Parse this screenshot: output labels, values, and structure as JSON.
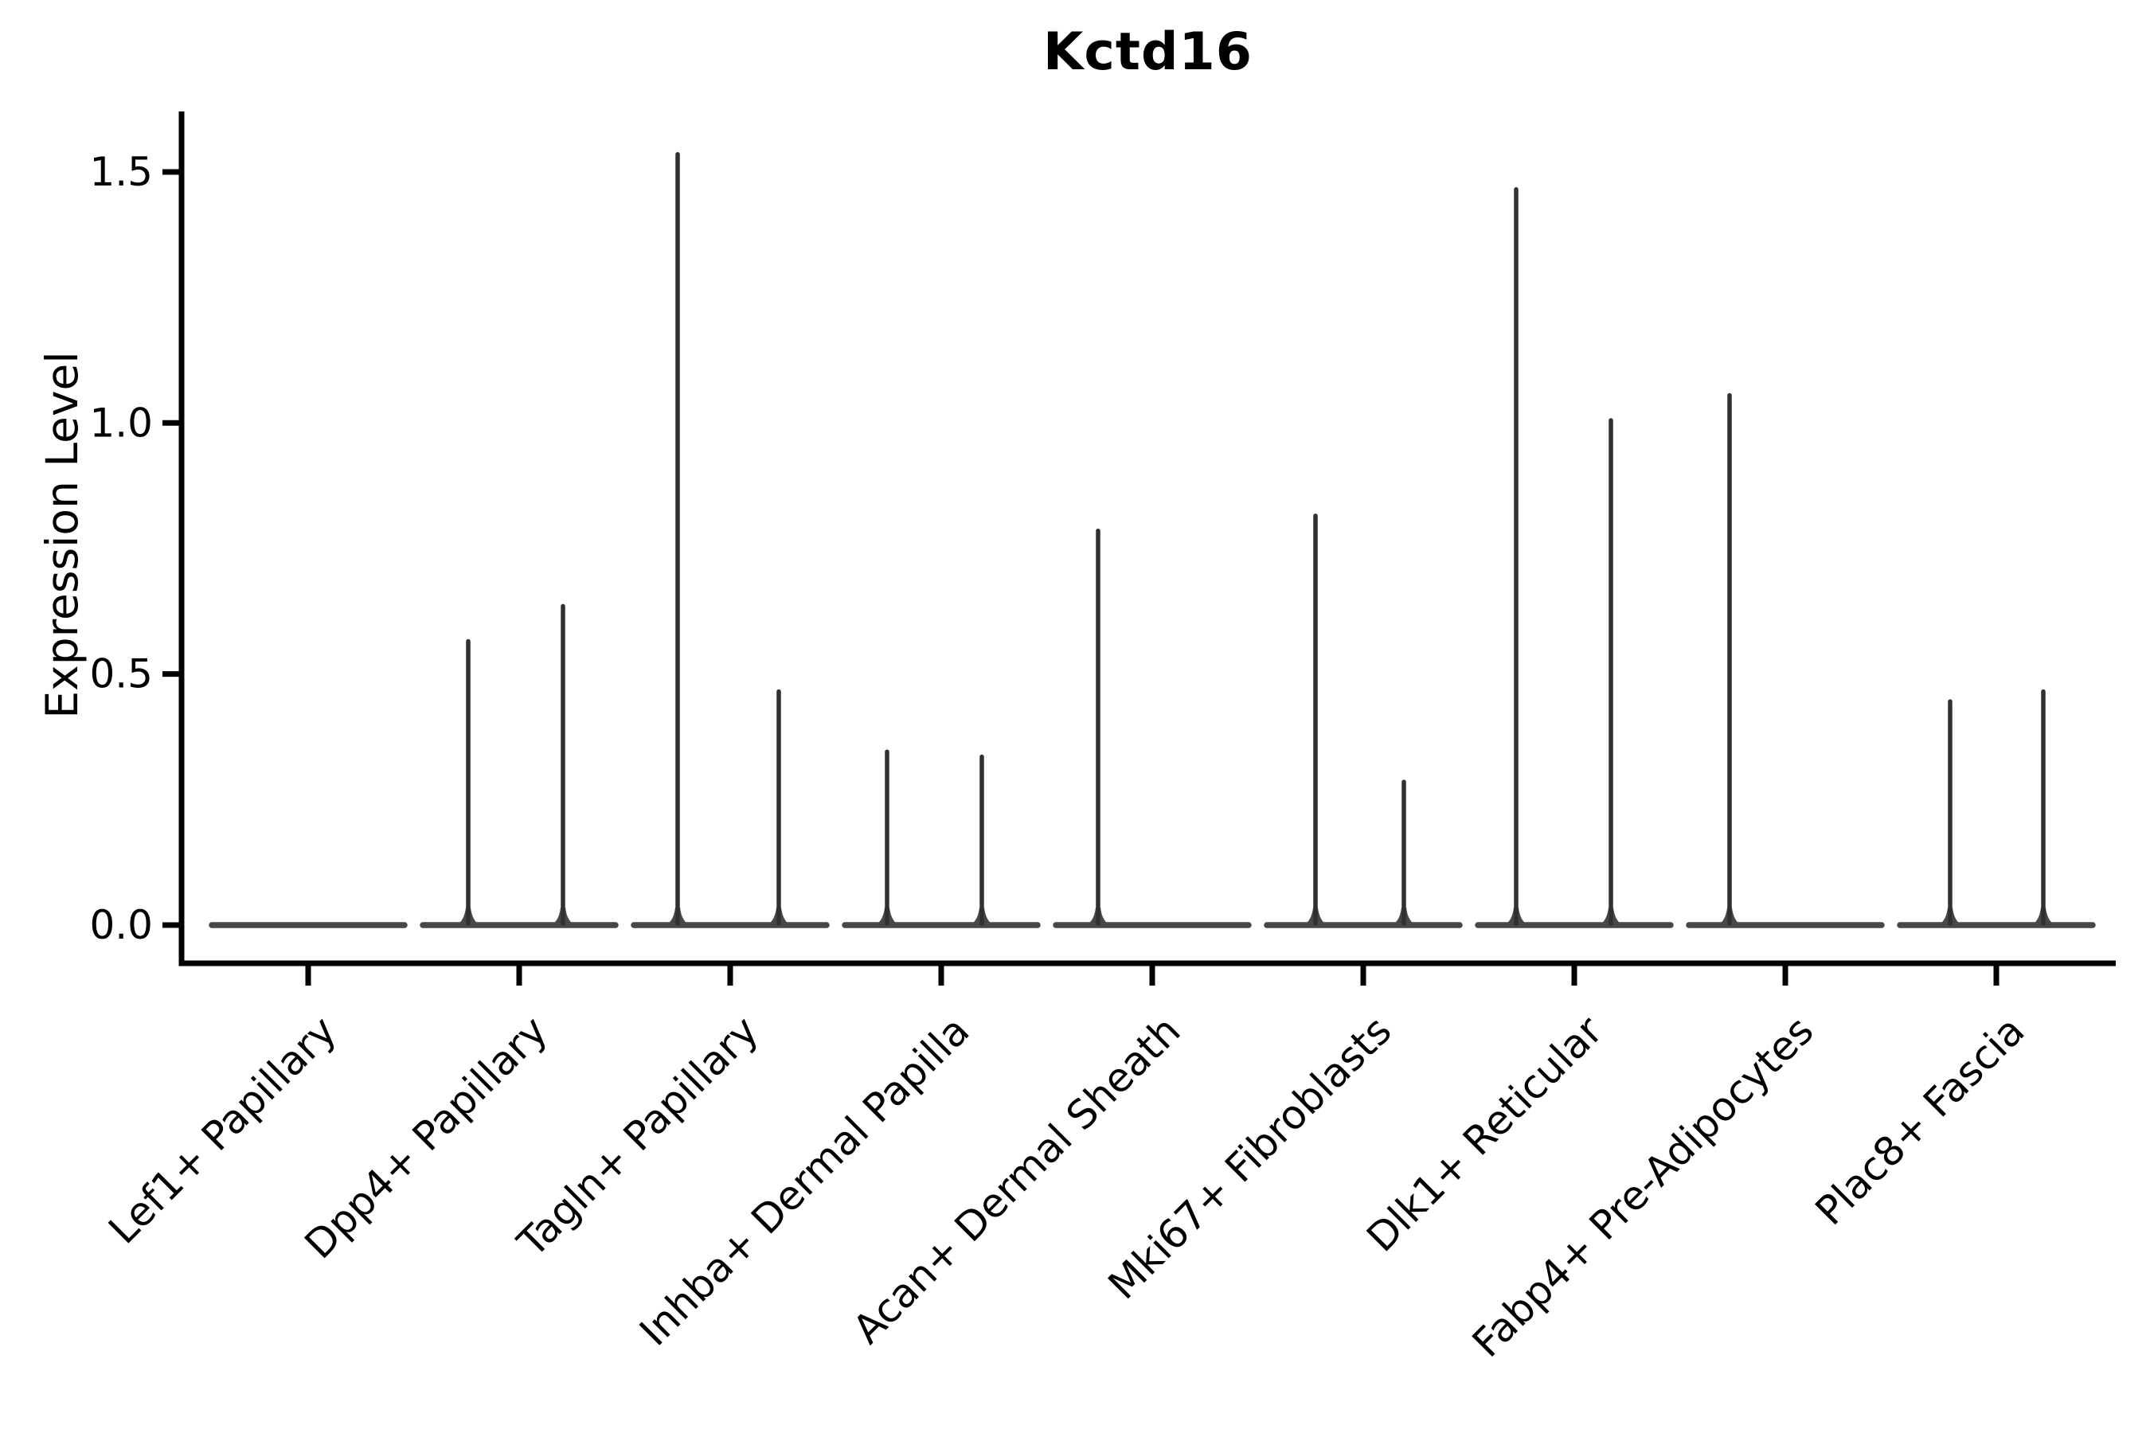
{
  "figure": {
    "background": "#ffffff"
  },
  "chart_data": {
    "type": "violin",
    "title": "Kctd16",
    "xlabel": "",
    "ylabel": "Expression Level",
    "legend": "none",
    "grid": false,
    "spines": [
      "left",
      "bottom"
    ],
    "ylim": [
      -0.08,
      1.62
    ],
    "ytick_values": [
      0.0,
      0.5,
      1.0,
      1.5
    ],
    "ytick_labels": [
      "0.0",
      "0.5",
      "1.0",
      "1.5"
    ],
    "xtick_label_rotation_deg": 45,
    "categories": [
      "Lef1+ Papillary",
      "Dpp4+ Papillary",
      "Tagln+ Papillary",
      "Inhba+ Dermal Papilla",
      "Acan+ Dermal Sheath",
      "Mki67+ Fibroblasts",
      "Dlk1+ Reticular",
      "Fabp4+ Pre-Adipocytes",
      "Plac8+ Fascia"
    ],
    "description": "Flat violins at expression 0 with thin spikes marking rare expressing cells; spike value = max expression level, dx = horizontal offset of spike within its group",
    "violins": [
      {
        "category": "Lef1+ Papillary",
        "bulk_value": 0.0,
        "spikes": []
      },
      {
        "category": "Dpp4+ Papillary",
        "bulk_value": 0.0,
        "spikes": [
          {
            "dx": -64,
            "value": 0.57
          },
          {
            "dx": 55,
            "value": 0.64
          }
        ]
      },
      {
        "category": "Tagln+ Papillary",
        "bulk_value": 0.0,
        "spikes": [
          {
            "dx": -66,
            "value": 1.54
          },
          {
            "dx": 61,
            "value": 0.47
          }
        ]
      },
      {
        "category": "Inhba+ Dermal Papilla",
        "bulk_value": 0.0,
        "spikes": [
          {
            "dx": -68,
            "value": 0.35
          },
          {
            "dx": 51,
            "value": 0.34
          }
        ]
      },
      {
        "category": "Acan+ Dermal Sheath",
        "bulk_value": 0.0,
        "spikes": [
          {
            "dx": -68,
            "value": 0.79
          }
        ]
      },
      {
        "category": "Mki67+ Fibroblasts",
        "bulk_value": 0.0,
        "spikes": [
          {
            "dx": -60,
            "value": 0.82
          },
          {
            "dx": 51,
            "value": 0.29
          }
        ]
      },
      {
        "category": "Dlk1+ Reticular",
        "bulk_value": 0.0,
        "spikes": [
          {
            "dx": -73,
            "value": 1.47
          },
          {
            "dx": 46,
            "value": 1.01
          }
        ]
      },
      {
        "category": "Fabp4+ Pre-Adipocytes",
        "bulk_value": 0.0,
        "spikes": [
          {
            "dx": -70,
            "value": 1.06
          }
        ]
      },
      {
        "category": "Plac8+ Fascia",
        "bulk_value": 0.0,
        "spikes": [
          {
            "dx": -58,
            "value": 0.45
          },
          {
            "dx": 59,
            "value": 0.47
          }
        ]
      }
    ],
    "colors": {
      "axis": "#000000",
      "text": "#000000",
      "violin_spike": "#303030",
      "violin_baseline": "#474747",
      "background": "#ffffff"
    }
  }
}
